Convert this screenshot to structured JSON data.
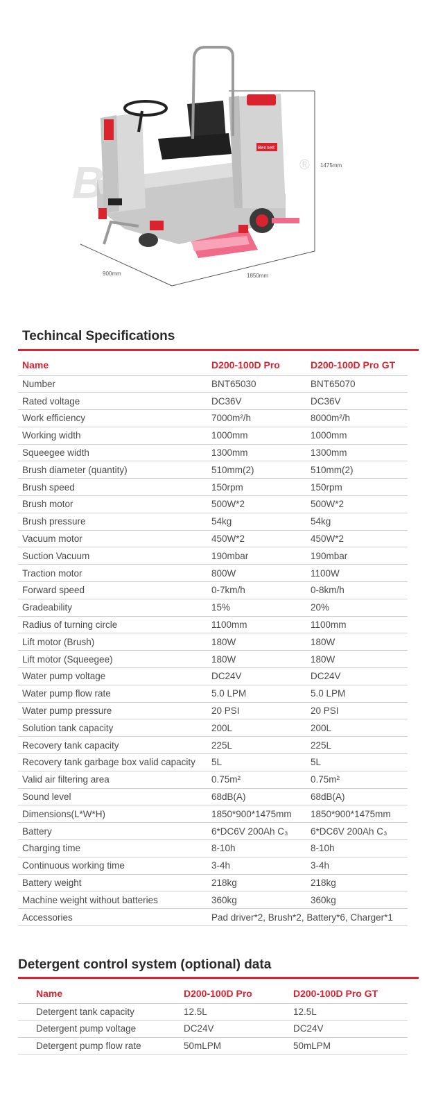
{
  "hero": {
    "dimensions": {
      "height": "1475mm",
      "width": "900mm",
      "length": "1850mm"
    },
    "watermark": "Bennett",
    "trademark": "®",
    "panel_label": "Bennett"
  },
  "specs": {
    "title": "Techincal Specifications",
    "header": {
      "name": "Name",
      "col1": "D200-100D Pro",
      "col2": "D200-100D Pro GT"
    },
    "rows": [
      {
        "name": "Number",
        "v1": "BNT65030",
        "v2": "BNT65070"
      },
      {
        "name": "Rated voltage",
        "v1": "DC36V",
        "v2": "DC36V"
      },
      {
        "name": "Work efficiency",
        "v1": "7000m²/h",
        "v2": "8000m²/h"
      },
      {
        "name": "Working width",
        "v1": "1000mm",
        "v2": "1000mm"
      },
      {
        "name": "Squeegee width",
        "v1": "1300mm",
        "v2": "1300mm"
      },
      {
        "name": "Brush diameter (quantity)",
        "v1": "510mm(2)",
        "v2": "510mm(2)"
      },
      {
        "name": "Brush speed",
        "v1": "150rpm",
        "v2": "150rpm"
      },
      {
        "name": "Brush motor",
        "v1": "500W*2",
        "v2": "500W*2"
      },
      {
        "name": "Brush pressure",
        "v1": "54kg",
        "v2": "54kg"
      },
      {
        "name": "Vacuum motor",
        "v1": "450W*2",
        "v2": "450W*2"
      },
      {
        "name": "Suction Vacuum",
        "v1": "190mbar",
        "v2": "190mbar"
      },
      {
        "name": "Traction motor",
        "v1": "800W",
        "v2": "1100W"
      },
      {
        "name": "Forward speed",
        "v1": "0-7km/h",
        "v2": "0-8km/h"
      },
      {
        "name": "Gradeability",
        "v1": "15%",
        "v2": "20%"
      },
      {
        "name": "Radius of turning circle",
        "v1": "1100mm",
        "v2": "1100mm"
      },
      {
        "name": "Lift motor (Brush)",
        "v1": "180W",
        "v2": "180W"
      },
      {
        "name": "Lift motor (Squeegee)",
        "v1": "180W",
        "v2": "180W"
      },
      {
        "name": "Water pump voltage",
        "v1": "DC24V",
        "v2": "DC24V"
      },
      {
        "name": "Water pump flow rate",
        "v1": "5.0 LPM",
        "v2": "5.0 LPM"
      },
      {
        "name": "Water pump pressure",
        "v1": "20 PSI",
        "v2": "20 PSI"
      },
      {
        "name": "Solution tank capacity",
        "v1": "200L",
        "v2": "200L"
      },
      {
        "name": "Recovery tank capacity",
        "v1": "225L",
        "v2": "225L"
      },
      {
        "name": "Recovery tank garbage box valid capacity",
        "v1": "5L",
        "v2": "5L"
      },
      {
        "name": "Valid air filtering area",
        "v1": "0.75m²",
        "v2": "0.75m²"
      },
      {
        "name": "Sound level",
        "v1": "68dB(A)",
        "v2": "68dB(A)"
      },
      {
        "name": "Dimensions(L*W*H)",
        "v1": "1850*900*1475mm",
        "v2": "1850*900*1475mm"
      },
      {
        "name": "Battery",
        "v1": "6*DC6V 200Ah C₃",
        "v2": "6*DC6V 200Ah C₃"
      },
      {
        "name": "Charging time",
        "v1": "8-10h",
        "v2": "8-10h"
      },
      {
        "name": "Continuous working time",
        "v1": "3-4h",
        "v2": "3-4h"
      },
      {
        "name": "Battery weight",
        "v1": "218kg",
        "v2": "218kg"
      },
      {
        "name": "Machine weight without batteries",
        "v1": "360kg",
        "v2": "360kg"
      }
    ],
    "accessories": {
      "name": "Accessories",
      "value": "Pad driver*2,  Brush*2, Battery*6, Charger*1"
    }
  },
  "detergent": {
    "title": "Detergent control system (optional) data",
    "header": {
      "name": "Name",
      "col1": "D200-100D Pro",
      "col2": "D200-100D Pro GT"
    },
    "rows": [
      {
        "name": "Detergent tank capacity",
        "v1": "12.5L",
        "v2": "12.5L"
      },
      {
        "name": "Detergent pump voltage",
        "v1": "DC24V",
        "v2": "DC24V"
      },
      {
        "name": "Detergent pump flow rate",
        "v1": "50mLPM",
        "v2": "50mLPM"
      }
    ]
  },
  "colors": {
    "accent": "#d9232f",
    "rule": "#cfcfcf",
    "text": "#4a4a4a"
  }
}
